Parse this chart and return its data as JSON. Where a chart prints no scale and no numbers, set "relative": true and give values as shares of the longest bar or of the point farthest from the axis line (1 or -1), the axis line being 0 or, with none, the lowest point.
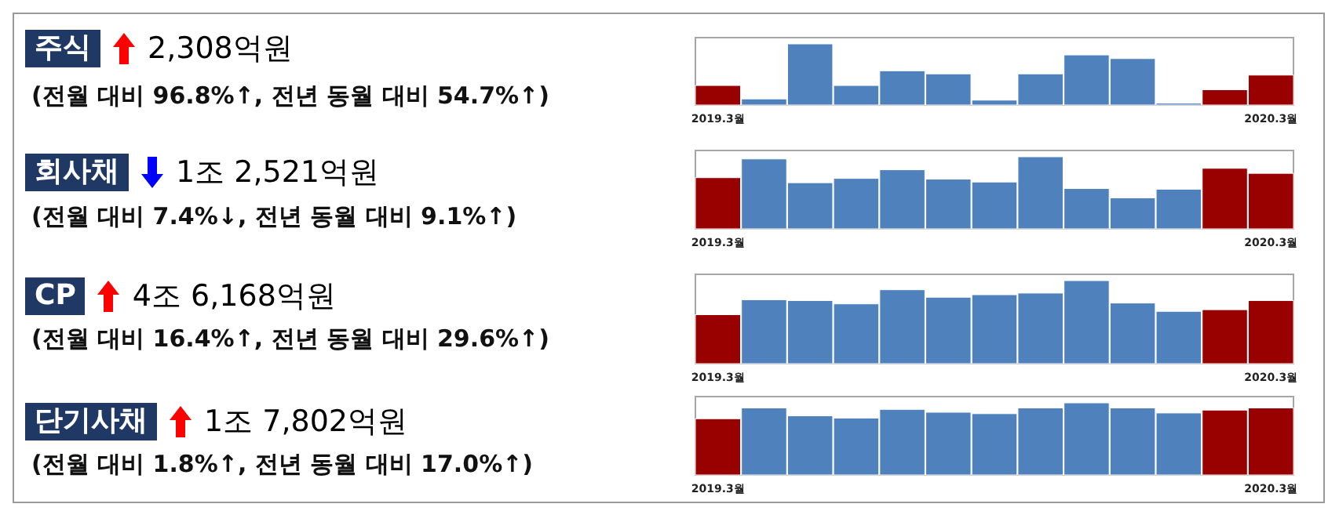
{
  "chart_data": [
    {
      "type": "other",
      "title": "주식",
      "subtitle": "2,308억원",
      "annotations": [
        "(전월 대비 96.8%↑, 전년 동월 대비 54.7%↑)"
      ]
    },
    {
      "type": "bar",
      "relative": true,
      "categories": [
        "2019.3월",
        null,
        null,
        null,
        null,
        null,
        null,
        null,
        null,
        null,
        null,
        null,
        "2020.3월"
      ],
      "values": [
        0.32,
        0.1,
        1,
        0.32,
        0.56,
        0.51,
        0.08,
        0.51,
        0.82,
        0.76,
        0.03,
        0.25,
        0.49
      ],
      "colors": [
        "#990000",
        "#4f81bd",
        "#4f81bd",
        "#4f81bd",
        "#4f81bd",
        "#4f81bd",
        "#4f81bd",
        "#4f81bd",
        "#4f81bd",
        "#4f81bd",
        "#4f81bd",
        "#990000",
        "#990000"
      ]
    },
    {
      "type": "other",
      "title": "회사채",
      "subtitle": "1조 2,521억원",
      "annotations": [
        "(전월 대비 7.4%↓, 전년 동월 대비 9.1%↑)"
      ]
    },
    {
      "type": "bar",
      "relative": true,
      "categories": [
        "2019.3월",
        null,
        null,
        null,
        null,
        null,
        null,
        null,
        null,
        null,
        null,
        null,
        "2020.3월"
      ],
      "values": [
        0.71,
        0.97,
        0.64,
        0.7,
        0.82,
        0.69,
        0.65,
        1,
        0.56,
        0.43,
        0.55,
        0.84,
        0.77
      ],
      "colors": [
        "#990000",
        "#4f81bd",
        "#4f81bd",
        "#4f81bd",
        "#4f81bd",
        "#4f81bd",
        "#4f81bd",
        "#4f81bd",
        "#4f81bd",
        "#4f81bd",
        "#4f81bd",
        "#990000",
        "#990000"
      ]
    },
    {
      "type": "other",
      "title": "CP",
      "subtitle": "4조 6,168억원",
      "annotations": [
        "(전월 대비 16.4%↑, 전년 동월 대비 29.6%↑)"
      ]
    },
    {
      "type": "bar",
      "relative": true,
      "categories": [
        "2019.3월",
        null,
        null,
        null,
        null,
        null,
        null,
        null,
        null,
        null,
        null,
        null,
        "2020.3월"
      ],
      "values": [
        0.59,
        0.77,
        0.76,
        0.72,
        0.89,
        0.8,
        0.83,
        0.85,
        1,
        0.73,
        0.63,
        0.65,
        0.76
      ],
      "colors": [
        "#990000",
        "#4f81bd",
        "#4f81bd",
        "#4f81bd",
        "#4f81bd",
        "#4f81bd",
        "#4f81bd",
        "#4f81bd",
        "#4f81bd",
        "#4f81bd",
        "#4f81bd",
        "#990000",
        "#990000"
      ]
    },
    {
      "type": "other",
      "title": "단기사채",
      "subtitle": "1조 7,802억원",
      "annotations": [
        "(전월 대비 1.8%↑, 전년 동월 대비 17.0%↑)"
      ]
    },
    {
      "type": "bar",
      "relative": true,
      "categories": [
        "2019.3월",
        null,
        null,
        null,
        null,
        null,
        null,
        null,
        null,
        null,
        null,
        null,
        "2020.3월"
      ],
      "values": [
        0.78,
        0.93,
        0.82,
        0.79,
        0.91,
        0.87,
        0.85,
        0.93,
        1,
        0.93,
        0.86,
        0.9,
        0.93
      ],
      "colors": [
        "#990000",
        "#4f81bd",
        "#4f81bd",
        "#4f81bd",
        "#4f81bd",
        "#4f81bd",
        "#4f81bd",
        "#4f81bd",
        "#4f81bd",
        "#4f81bd",
        "#4f81bd",
        "#990000",
        "#990000"
      ]
    }
  ]
}
